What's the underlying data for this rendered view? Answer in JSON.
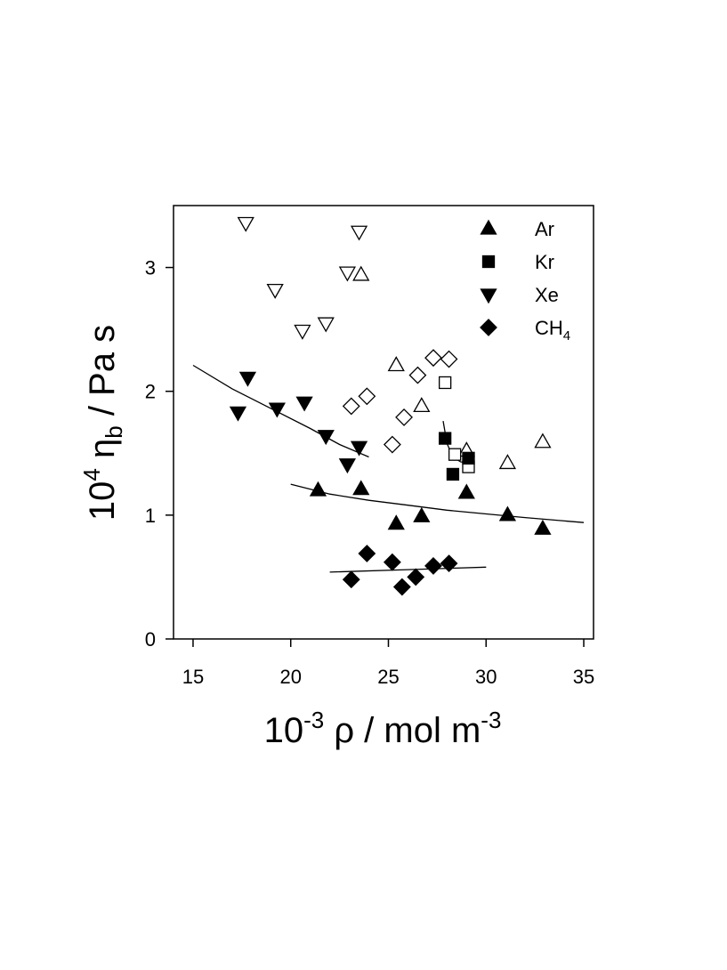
{
  "chart_data": {
    "type": "scatter",
    "xlabel": {
      "base": "10",
      "exp": "-3",
      "rest": " ρ / mol m",
      "unit_exp": "-3"
    },
    "ylabel": {
      "base": "10",
      "exp": "4",
      "eta": " η",
      "sub": "b",
      "rest": " / Pa s"
    },
    "xlim": [
      14,
      35.5
    ],
    "ylim": [
      0,
      3.5
    ],
    "xticks": [
      15,
      20,
      25,
      30,
      35
    ],
    "yticks": [
      0,
      1,
      2,
      3
    ],
    "grid": false,
    "legend_position": "top-right",
    "legend": [
      {
        "label": "Ar",
        "marker": "triangle-up"
      },
      {
        "label": "Kr",
        "marker": "square"
      },
      {
        "label": "Xe",
        "marker": "triangle-down"
      },
      {
        "label": "CH",
        "sub": "4",
        "marker": "diamond"
      }
    ],
    "series": [
      {
        "name": "Ar",
        "marker": "triangle-up",
        "filled_points": [
          {
            "x": 21.4,
            "y": 1.2
          },
          {
            "x": 23.6,
            "y": 1.21
          },
          {
            "x": 25.4,
            "y": 0.93
          },
          {
            "x": 26.7,
            "y": 0.99
          },
          {
            "x": 29.0,
            "y": 1.18
          },
          {
            "x": 31.1,
            "y": 1.0
          },
          {
            "x": 32.9,
            "y": 0.89
          }
        ],
        "open_points": [
          {
            "x": 23.6,
            "y": 2.94
          },
          {
            "x": 25.4,
            "y": 2.21
          },
          {
            "x": 26.7,
            "y": 1.88
          },
          {
            "x": 29.0,
            "y": 1.52
          },
          {
            "x": 31.1,
            "y": 1.42
          },
          {
            "x": 32.9,
            "y": 1.59
          }
        ],
        "fit_line": [
          {
            "x": 20.0,
            "y": 1.25
          },
          {
            "x": 22.0,
            "y": 1.17
          },
          {
            "x": 24.0,
            "y": 1.12
          },
          {
            "x": 26.0,
            "y": 1.08
          },
          {
            "x": 28.0,
            "y": 1.04
          },
          {
            "x": 30.0,
            "y": 1.01
          },
          {
            "x": 32.0,
            "y": 0.98
          },
          {
            "x": 35.0,
            "y": 0.94
          }
        ]
      },
      {
        "name": "Kr",
        "marker": "square",
        "filled_points": [
          {
            "x": 27.9,
            "y": 1.62
          },
          {
            "x": 28.3,
            "y": 1.33
          },
          {
            "x": 29.1,
            "y": 1.46
          }
        ],
        "open_points": [
          {
            "x": 27.9,
            "y": 2.07
          },
          {
            "x": 28.4,
            "y": 1.49
          },
          {
            "x": 29.1,
            "y": 1.39
          }
        ],
        "fit_line": [
          {
            "x": 27.8,
            "y": 1.76
          },
          {
            "x": 28.0,
            "y": 1.58
          },
          {
            "x": 28.3,
            "y": 1.47
          },
          {
            "x": 28.7,
            "y": 1.43
          },
          {
            "x": 29.2,
            "y": 1.42
          }
        ]
      },
      {
        "name": "Xe",
        "marker": "triangle-down",
        "filled_points": [
          {
            "x": 17.3,
            "y": 1.83
          },
          {
            "x": 17.8,
            "y": 2.11
          },
          {
            "x": 19.3,
            "y": 1.86
          },
          {
            "x": 20.7,
            "y": 1.91
          },
          {
            "x": 21.8,
            "y": 1.64
          },
          {
            "x": 22.9,
            "y": 1.41
          },
          {
            "x": 23.5,
            "y": 1.55
          }
        ],
        "open_points": [
          {
            "x": 17.7,
            "y": 3.36
          },
          {
            "x": 19.2,
            "y": 2.82
          },
          {
            "x": 20.6,
            "y": 2.49
          },
          {
            "x": 21.8,
            "y": 2.55
          },
          {
            "x": 22.9,
            "y": 2.96
          },
          {
            "x": 23.5,
            "y": 3.29
          }
        ],
        "fit_line": [
          {
            "x": 15.0,
            "y": 2.21
          },
          {
            "x": 17.0,
            "y": 2.02
          },
          {
            "x": 19.0,
            "y": 1.86
          },
          {
            "x": 21.0,
            "y": 1.7
          },
          {
            "x": 22.5,
            "y": 1.57
          },
          {
            "x": 24.0,
            "y": 1.47
          }
        ]
      },
      {
        "name": "CH4",
        "marker": "diamond",
        "filled_points": [
          {
            "x": 23.1,
            "y": 0.48
          },
          {
            "x": 23.9,
            "y": 0.69
          },
          {
            "x": 25.2,
            "y": 0.62
          },
          {
            "x": 25.7,
            "y": 0.42
          },
          {
            "x": 26.4,
            "y": 0.5
          },
          {
            "x": 27.3,
            "y": 0.59
          },
          {
            "x": 28.1,
            "y": 0.61
          }
        ],
        "open_points": [
          {
            "x": 23.1,
            "y": 1.88
          },
          {
            "x": 23.9,
            "y": 1.96
          },
          {
            "x": 25.2,
            "y": 1.57
          },
          {
            "x": 25.8,
            "y": 1.79
          },
          {
            "x": 26.5,
            "y": 2.13
          },
          {
            "x": 27.3,
            "y": 2.27
          },
          {
            "x": 28.1,
            "y": 2.26
          }
        ],
        "fit_line": [
          {
            "x": 22.0,
            "y": 0.54
          },
          {
            "x": 26.0,
            "y": 0.56
          },
          {
            "x": 30.0,
            "y": 0.58
          }
        ]
      }
    ]
  }
}
